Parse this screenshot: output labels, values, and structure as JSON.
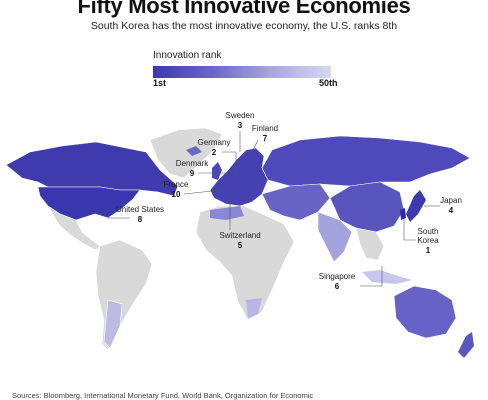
{
  "title": "Fifty Most Innovative Economies",
  "subtitle": "South Korea has the most innovative economy, the U.S. ranks 8th",
  "legend": {
    "title": "Innovation rank",
    "min_label": "1st",
    "max_label": "50th",
    "color_min": "#3b37b0",
    "color_max": "#d8d7f1"
  },
  "map": {
    "other_country_color": "#d9d9d9",
    "callouts": [
      {
        "country": "Sweden",
        "rank": "3"
      },
      {
        "country": "Germany",
        "rank": "2"
      },
      {
        "country": "Finland",
        "rank": "7"
      },
      {
        "country": "Denmark",
        "rank": "9"
      },
      {
        "country": "France",
        "rank": "10"
      },
      {
        "country": "United States",
        "rank": "8"
      },
      {
        "country": "Switzerland",
        "rank": "5"
      },
      {
        "country": "Japan",
        "rank": "4"
      },
      {
        "country": "South Korea",
        "rank": "1"
      },
      {
        "country": "Singapore",
        "rank": "6"
      }
    ]
  },
  "sources": "Sources: Bloomberg, International Monetary Fund, World Bank, Organization for Economic"
}
